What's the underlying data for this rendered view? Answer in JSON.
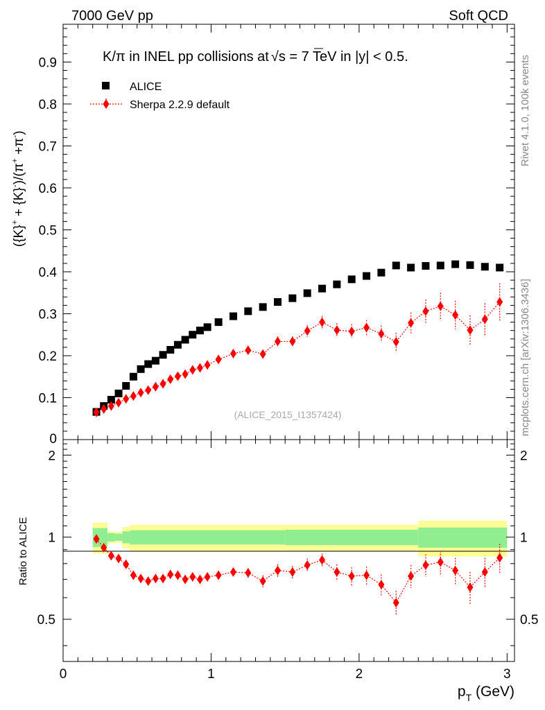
{
  "header": {
    "left": "7000 GeV pp",
    "right": "Soft QCD"
  },
  "side": {
    "rivet": "Rivet 4.1.0,  100k events",
    "mcplots": "mcplots.cern.ch [arXiv:1306.3436]"
  },
  "chart_data": {
    "type": "scatter",
    "title_parts": {
      "prefix": "K/π in INEL pp collisions at",
      "sqrt": "√",
      "s": "s",
      "suffix": " =  7 TeV in |y| < 0.5."
    },
    "watermark": "(ALICE_2015_I1357424)",
    "xlabel": {
      "p": "p",
      "sub": "T",
      "unit": " (GeV)"
    },
    "ylabel": {
      "a": "({K}",
      "sa": "+",
      "b": " + {K}",
      "sb": "-",
      "c": ")/(π",
      "sc": "+",
      "d": " +π",
      "sd": "-",
      "e": ")"
    },
    "ratio_ylabel": "Ratio to ALICE",
    "xlim": [
      0,
      3.05
    ],
    "ylim": [
      0,
      0.99
    ],
    "ratio_ylim": [
      0.35,
      2.28
    ],
    "x_ticks": [
      "0",
      "1",
      "2",
      "3"
    ],
    "y_ticks": [
      "0",
      "0.1",
      "0.2",
      "0.3",
      "0.4",
      "0.5",
      "0.6",
      "0.7",
      "0.8",
      "0.9"
    ],
    "ratio_ticks": [
      "0.5",
      "1",
      "2"
    ],
    "legend": [
      {
        "name": "ALICE",
        "marker": "square",
        "color": "#000000"
      },
      {
        "name": "Sherpa 2.2.9 default",
        "marker": "diamond",
        "color": "#ff0000"
      }
    ],
    "x": [
      0.225,
      0.275,
      0.325,
      0.375,
      0.425,
      0.475,
      0.525,
      0.575,
      0.625,
      0.675,
      0.725,
      0.775,
      0.825,
      0.875,
      0.925,
      0.975,
      1.05,
      1.15,
      1.25,
      1.35,
      1.45,
      1.55,
      1.65,
      1.75,
      1.85,
      1.95,
      2.05,
      2.15,
      2.25,
      2.35,
      2.45,
      2.55,
      2.65,
      2.75,
      2.85,
      2.95
    ],
    "series": [
      {
        "name": "ALICE",
        "values": [
          0.066,
          0.08,
          0.095,
          0.11,
          0.128,
          0.15,
          0.168,
          0.18,
          0.188,
          0.202,
          0.214,
          0.226,
          0.238,
          0.25,
          0.26,
          0.268,
          0.28,
          0.294,
          0.306,
          0.316,
          0.328,
          0.337,
          0.349,
          0.36,
          0.37,
          0.382,
          0.39,
          0.398,
          0.415,
          0.41,
          0.414,
          0.415,
          0.418,
          0.416,
          0.412,
          0.41
        ]
      },
      {
        "name": "Sherpa 2.2.9 default",
        "values": [
          0.065,
          0.073,
          0.08,
          0.088,
          0.097,
          0.104,
          0.112,
          0.118,
          0.126,
          0.133,
          0.144,
          0.151,
          0.156,
          0.166,
          0.171,
          0.178,
          0.191,
          0.205,
          0.213,
          0.204,
          0.234,
          0.234,
          0.259,
          0.28,
          0.261,
          0.258,
          0.267,
          0.252,
          0.233,
          0.278,
          0.306,
          0.318,
          0.297,
          0.261,
          0.287,
          0.328
        ],
        "errors": [
          0.003,
          0.003,
          0.003,
          0.004,
          0.004,
          0.004,
          0.004,
          0.005,
          0.005,
          0.005,
          0.005,
          0.006,
          0.006,
          0.006,
          0.006,
          0.007,
          0.007,
          0.008,
          0.009,
          0.01,
          0.012,
          0.012,
          0.014,
          0.015,
          0.016,
          0.017,
          0.018,
          0.02,
          0.022,
          0.025,
          0.028,
          0.032,
          0.034,
          0.035,
          0.038,
          0.045
        ]
      }
    ],
    "ratio": {
      "values": [
        0.985,
        0.915,
        0.855,
        0.835,
        0.795,
        0.725,
        0.705,
        0.69,
        0.705,
        0.705,
        0.73,
        0.725,
        0.7,
        0.715,
        0.7,
        0.715,
        0.725,
        0.745,
        0.74,
        0.69,
        0.755,
        0.745,
        0.79,
        0.825,
        0.745,
        0.72,
        0.725,
        0.67,
        0.575,
        0.72,
        0.79,
        0.81,
        0.755,
        0.655,
        0.745,
        0.84
      ],
      "errors": [
        0.012,
        0.012,
        0.012,
        0.015,
        0.015,
        0.015,
        0.015,
        0.018,
        0.018,
        0.018,
        0.02,
        0.02,
        0.02,
        0.02,
        0.02,
        0.022,
        0.025,
        0.028,
        0.03,
        0.035,
        0.04,
        0.04,
        0.045,
        0.045,
        0.05,
        0.055,
        0.055,
        0.06,
        0.06,
        0.07,
        0.075,
        0.08,
        0.085,
        0.09,
        0.095,
        0.105
      ],
      "band_edges": [
        0.2,
        0.3,
        0.35,
        0.4,
        0.45,
        1.5,
        2.4,
        3.0
      ],
      "band_green": [
        0.08,
        0.035,
        0.03,
        0.05,
        0.06,
        0.065,
        0.085
      ],
      "band_yellow": [
        0.13,
        0.05,
        0.045,
        0.09,
        0.11,
        0.11,
        0.15
      ]
    }
  }
}
